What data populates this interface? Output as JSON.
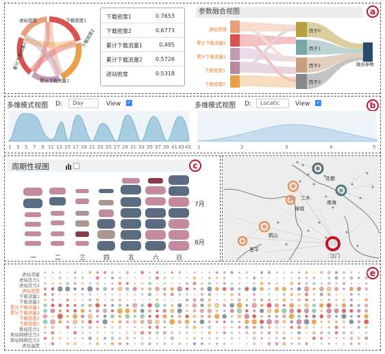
{
  "panel_a": {
    "badge": "a",
    "chord_labels": [
      "进站密度",
      "下载密度1",
      "下载密度2",
      "累计下载流量1",
      "累计下载流量2"
    ],
    "table": [
      {
        "key": "下载密度1",
        "value": "0.7653"
      },
      {
        "key": "下载密度2",
        "value": "0.6773"
      },
      {
        "key": "累计下载流量1",
        "value": "0.495"
      },
      {
        "key": "累计下载流量2",
        "value": "0.5726"
      },
      {
        "key": "进站密度",
        "value": "0.5318"
      }
    ],
    "sankey_title": "参数融合视图",
    "sankey_sources": [
      "进站密度",
      "累计下载流量2",
      "累计下载流量1",
      "下载密度1",
      "下载密度2"
    ],
    "sankey_factors": [
      "因子0",
      "因子1",
      "因子2",
      "因子3"
    ],
    "sankey_target": "融合参数",
    "colors": {
      "source": [
        "#e8a07a",
        "#d9534f",
        "#c49ab8",
        "#b88aa0",
        "#e8a04a"
      ],
      "factor": [
        "#b8a040",
        "#7aa8a8",
        "#c8a080",
        "#888888"
      ],
      "target": "#2b4a6b"
    }
  },
  "panel_b": {
    "badge": "b",
    "left": {
      "title": "多维模式视图",
      "d_label": "D:",
      "d_value": "Day",
      "view_label": "View",
      "ticks": [
        "1",
        "3",
        "5",
        "7",
        "9",
        "11",
        "13",
        "15",
        "17",
        "19",
        "21",
        "23",
        "25",
        "27",
        "29",
        "31",
        "33",
        "35",
        "37",
        "39",
        "41",
        "43",
        "45"
      ]
    },
    "right": {
      "title": "多维模式视图",
      "d_label": "D:",
      "d_value": "Locatic",
      "view_label": "View",
      "ticks": [
        "1",
        "2",
        "3",
        "4",
        "5"
      ]
    }
  },
  "panel_c": {
    "badge": "c",
    "title": "周期性视图",
    "weekdays": [
      "一",
      "二",
      "三",
      "四",
      "五",
      "六",
      "日"
    ],
    "months": [
      "7月",
      "8月"
    ]
  },
  "panel_d": {
    "badge": "d",
    "places": [
      "花都",
      "三水",
      "南海",
      "禅城",
      "鹤山",
      "恩平",
      "江门"
    ]
  },
  "panel_e": {
    "badge": "e",
    "rows": [
      {
        "label": "进站流量",
        "highlight": false
      },
      {
        "label": "进站压力1",
        "highlight": false
      },
      {
        "label": "进站压力2",
        "highlight": false
      },
      {
        "label": "进站密度",
        "highlight": true
      },
      {
        "label": "下载流量1",
        "highlight": false
      },
      {
        "label": "下载流量2",
        "highlight": false
      },
      {
        "label": "累计下载流量1",
        "highlight": true
      },
      {
        "label": "累计下载流量2",
        "highlight": true
      },
      {
        "label": "下载密度2",
        "highlight": true
      },
      {
        "label": "下载密度1",
        "highlight": true
      },
      {
        "label": "离站压力1",
        "highlight": false
      },
      {
        "label": "离站网络压力1",
        "highlight": false
      },
      {
        "label": "离站网络压力2",
        "highlight": false
      },
      {
        "label": "进站温度",
        "highlight": false
      }
    ],
    "colors": {
      "highlight": "#e8703a",
      "normal": "#666666"
    }
  }
}
